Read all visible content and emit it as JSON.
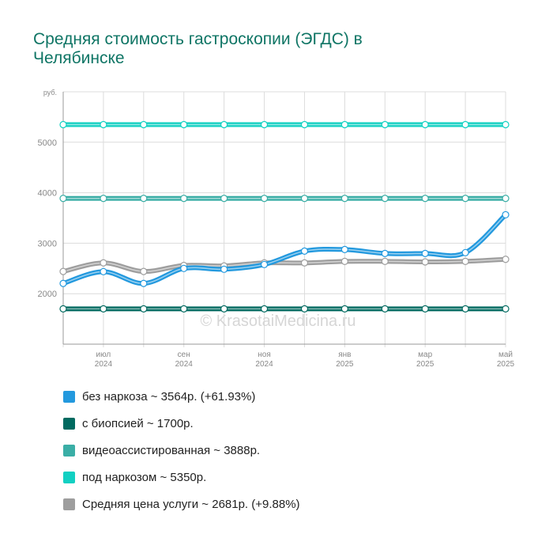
{
  "chart_data": {
    "type": "line",
    "title": "Средняя стоимость гастроскопии (ЭГДС) в Челябинске",
    "watermark": "© KrasotaiMedicina.ru",
    "categories": [
      null,
      "июл 2024",
      null,
      "сен 2024",
      null,
      "ноя 2024",
      null,
      "янв 2025",
      null,
      "мар 2025",
      null,
      "май 2025"
    ],
    "ylim": [
      1000,
      6000
    ],
    "yticks": [
      2000,
      3000,
      4000,
      5000,
      {
        "value": 6000,
        "label": "руб."
      }
    ],
    "grid": true,
    "series": [
      {
        "name": "без наркоза ~ 3564р. (+61.93%)",
        "color": "#2399de",
        "values": [
          2203,
          2437,
          2203,
          2500,
          2484,
          2578,
          2844,
          2875,
          2797,
          2797,
          2813,
          3564
        ]
      },
      {
        "name": "с биопсией ~ 1700р.",
        "color": "#006a60",
        "values": [
          1700,
          1700,
          1700,
          1700,
          1700,
          1700,
          1700,
          1700,
          1700,
          1700,
          1700,
          1700
        ]
      },
      {
        "name": "видеоассистированная ~ 3888р.",
        "color": "#3aaea6",
        "values": [
          3888,
          3888,
          3888,
          3888,
          3888,
          3888,
          3888,
          3888,
          3888,
          3888,
          3888,
          3888
        ]
      },
      {
        "name": "под наркозом ~ 5350р.",
        "color": "#12d0c2",
        "values": [
          5350,
          5350,
          5350,
          5350,
          5350,
          5350,
          5350,
          5350,
          5350,
          5350,
          5350,
          5350
        ]
      },
      {
        "name": "Средняя цена услуги ~ 2681р. (+9.88%)",
        "color": "#9e9e9e",
        "values": [
          2440,
          2610,
          2440,
          2560,
          2550,
          2610,
          2610,
          2640,
          2640,
          2630,
          2640,
          2681
        ]
      }
    ]
  }
}
